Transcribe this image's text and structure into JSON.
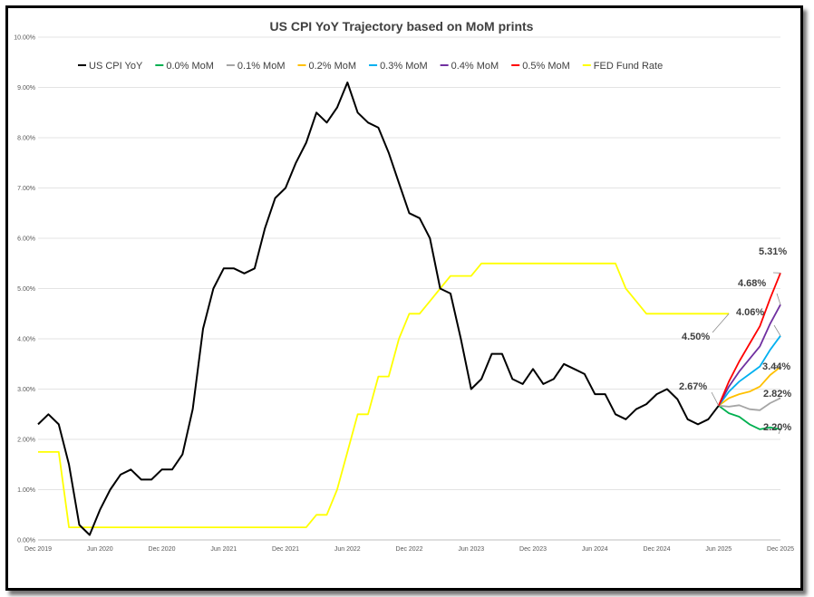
{
  "chart_data": {
    "type": "line",
    "title": "US CPI YoY Trajectory based on MoM prints",
    "ylim": [
      0,
      10
    ],
    "yticks": [
      "0.00%",
      "1.00%",
      "2.00%",
      "3.00%",
      "4.00%",
      "5.00%",
      "6.00%",
      "7.00%",
      "8.00%",
      "9.00%",
      "10.00%"
    ],
    "xlim": [
      0,
      72
    ],
    "xticks": [
      {
        "x": 0,
        "label": "Dec 2019"
      },
      {
        "x": 6,
        "label": "Jun 2020"
      },
      {
        "x": 12,
        "label": "Dec 2020"
      },
      {
        "x": 18,
        "label": "Jun 2021"
      },
      {
        "x": 24,
        "label": "Dec 2021"
      },
      {
        "x": 30,
        "label": "Jun 2022"
      },
      {
        "x": 36,
        "label": "Dec 2022"
      },
      {
        "x": 42,
        "label": "Jun 2023"
      },
      {
        "x": 48,
        "label": "Dec 2023"
      },
      {
        "x": 54,
        "label": "Jun 2024"
      },
      {
        "x": 60,
        "label": "Dec 2024"
      },
      {
        "x": 66,
        "label": "Jun 2025"
      },
      {
        "x": 72,
        "label": "Dec 2025"
      }
    ],
    "gridlines": "horizontal",
    "legend_position": "top",
    "series": [
      {
        "name": "US CPI YoY",
        "color": "#000000",
        "start": 0,
        "values": [
          2.3,
          2.5,
          2.3,
          1.5,
          0.3,
          0.1,
          0.6,
          1.0,
          1.3,
          1.4,
          1.2,
          1.2,
          1.4,
          1.4,
          1.7,
          2.6,
          4.2,
          5.0,
          5.4,
          5.4,
          5.3,
          5.4,
          6.2,
          6.8,
          7.0,
          7.5,
          7.9,
          8.5,
          8.3,
          8.6,
          9.1,
          8.5,
          8.3,
          8.2,
          7.7,
          7.1,
          6.5,
          6.4,
          6.0,
          5.0,
          4.9,
          4.0,
          3.0,
          3.2,
          3.7,
          3.7,
          3.2,
          3.1,
          3.4,
          3.1,
          3.2,
          3.5,
          3.4,
          3.3,
          2.9,
          2.9,
          2.5,
          2.4,
          2.6,
          2.7,
          2.9,
          3.0,
          2.8,
          2.4,
          2.3,
          2.4,
          2.67
        ]
      },
      {
        "name": "0.0% MoM",
        "color": "#00B050",
        "start": 66,
        "values": [
          2.67,
          2.52,
          2.45,
          2.3,
          2.2,
          2.24,
          2.2
        ]
      },
      {
        "name": "0.1% MoM",
        "color": "#A5A5A5",
        "start": 66,
        "values": [
          2.67,
          2.65,
          2.68,
          2.6,
          2.58,
          2.72,
          2.82
        ]
      },
      {
        "name": "0.2% MoM",
        "color": "#FFC000",
        "start": 66,
        "values": [
          2.67,
          2.82,
          2.9,
          2.95,
          3.05,
          3.28,
          3.44
        ]
      },
      {
        "name": "0.3% MoM",
        "color": "#00B0F0",
        "start": 66,
        "values": [
          2.67,
          2.95,
          3.15,
          3.3,
          3.45,
          3.78,
          4.06
        ]
      },
      {
        "name": "0.4% MoM",
        "color": "#7030A0",
        "start": 66,
        "values": [
          2.67,
          3.05,
          3.35,
          3.6,
          3.85,
          4.3,
          4.68
        ]
      },
      {
        "name": "0.5% MoM",
        "color": "#FF0000",
        "start": 66,
        "values": [
          2.67,
          3.15,
          3.55,
          3.9,
          4.25,
          4.8,
          5.31
        ]
      },
      {
        "name": "FED Fund Rate",
        "color": "#FFFF00",
        "start": 0,
        "values": [
          1.75,
          1.75,
          1.75,
          0.25,
          0.25,
          0.25,
          0.25,
          0.25,
          0.25,
          0.25,
          0.25,
          0.25,
          0.25,
          0.25,
          0.25,
          0.25,
          0.25,
          0.25,
          0.25,
          0.25,
          0.25,
          0.25,
          0.25,
          0.25,
          0.25,
          0.25,
          0.25,
          0.5,
          0.5,
          1.0,
          1.75,
          2.5,
          2.5,
          3.25,
          3.25,
          4.0,
          4.5,
          4.5,
          4.75,
          5.0,
          5.25,
          5.25,
          5.25,
          5.5,
          5.5,
          5.5,
          5.5,
          5.5,
          5.5,
          5.5,
          5.5,
          5.5,
          5.5,
          5.5,
          5.5,
          5.5,
          5.5,
          5.0,
          4.75,
          4.5,
          4.5,
          4.5,
          4.5,
          4.5,
          4.5,
          4.5,
          4.5,
          4.5
        ]
      }
    ],
    "annotations": [
      {
        "text": "5.31%",
        "point": [
          72,
          5.31
        ],
        "color": "#FF0000"
      },
      {
        "text": "4.68%",
        "point": [
          72,
          4.68
        ],
        "color": "#7030A0"
      },
      {
        "text": "4.06%",
        "point": [
          72,
          4.06
        ],
        "color": "#00B0F0"
      },
      {
        "text": "3.44%",
        "point": [
          72,
          3.44
        ],
        "color": "#FFC000"
      },
      {
        "text": "2.82%",
        "point": [
          72,
          2.82
        ],
        "color": "#A5A5A5"
      },
      {
        "text": "2.20%",
        "point": [
          72,
          2.2
        ],
        "color": "#00B050"
      },
      {
        "text": "2.67%",
        "point": [
          66,
          2.67
        ],
        "color": "#000000"
      },
      {
        "text": "4.50%",
        "point": [
          67,
          4.5
        ],
        "color": "#FFFF00"
      }
    ]
  }
}
